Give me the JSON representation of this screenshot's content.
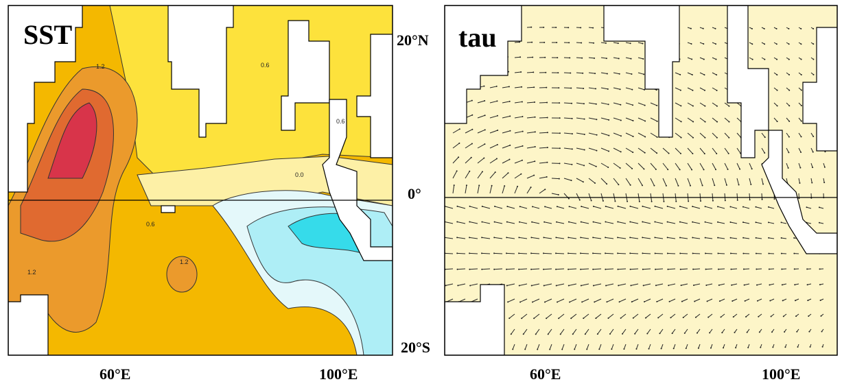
{
  "panels": [
    {
      "label": "SST",
      "lon_labels": [
        "60°E",
        "100°E"
      ],
      "contour_labels": [
        "1.2",
        "0.6",
        "0.0",
        "0.6",
        "1.2",
        "1.2",
        "0.6"
      ]
    },
    {
      "label": "tau",
      "lon_labels": [
        "60°E",
        "100°E"
      ]
    }
  ],
  "lat_labels": [
    "20°N",
    "0°",
    "20°S"
  ]
}
